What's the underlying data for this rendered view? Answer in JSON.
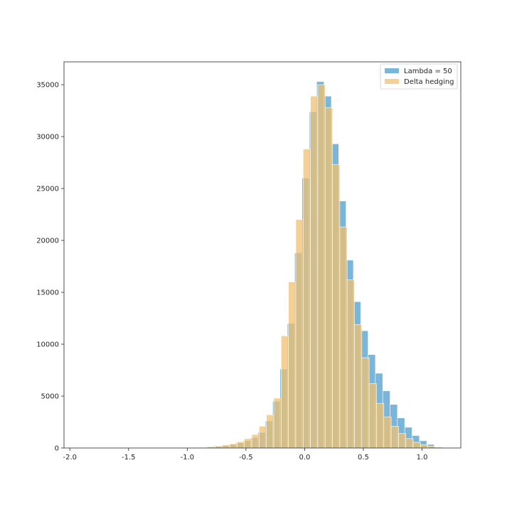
{
  "chart_data": {
    "type": "bar",
    "title": "",
    "xlabel": "",
    "ylabel": "",
    "xlim": [
      -2.05,
      1.33
    ],
    "ylim": [
      0,
      37200
    ],
    "xticks": [
      "-2.0",
      "-1.5",
      "-1.0",
      "-0.5",
      "0.0",
      "0.5",
      "1.0"
    ],
    "xtick_values": [
      -2.0,
      -1.5,
      -1.0,
      -0.5,
      0.0,
      0.5,
      1.0
    ],
    "yticks": [
      "0",
      "5000",
      "10000",
      "15000",
      "20000",
      "25000",
      "30000",
      "35000"
    ],
    "ytick_values": [
      0,
      5000,
      10000,
      15000,
      20000,
      25000,
      30000,
      35000
    ],
    "grid": false,
    "legend_position": "top-right",
    "series": [
      {
        "name": "Lambda = 50",
        "color": "#6baed6",
        "alpha": 0.9,
        "bin_start": -0.96,
        "bin_width": 0.0625,
        "values": [
          30,
          80,
          130,
          180,
          250,
          350,
          500,
          700,
          1000,
          1500,
          2600,
          4500,
          7600,
          12000,
          18800,
          26000,
          32400,
          35300,
          33900,
          29300,
          23800,
          18100,
          14100,
          11300,
          9000,
          7200,
          5500,
          4200,
          2900,
          2000,
          1200,
          700,
          350,
          120,
          40
        ]
      },
      {
        "name": "Delta hedging",
        "color": "#f0c070",
        "alpha": 0.75,
        "bin_start": -0.888,
        "bin_width": 0.0625,
        "values": [
          50,
          110,
          180,
          280,
          400,
          600,
          900,
          1300,
          2100,
          3200,
          4800,
          10800,
          16000,
          22000,
          28800,
          33900,
          35000,
          32800,
          27300,
          21300,
          16200,
          11900,
          8700,
          6200,
          4300,
          3000,
          2100,
          1400,
          900,
          550,
          320,
          180,
          80,
          30
        ]
      }
    ]
  }
}
